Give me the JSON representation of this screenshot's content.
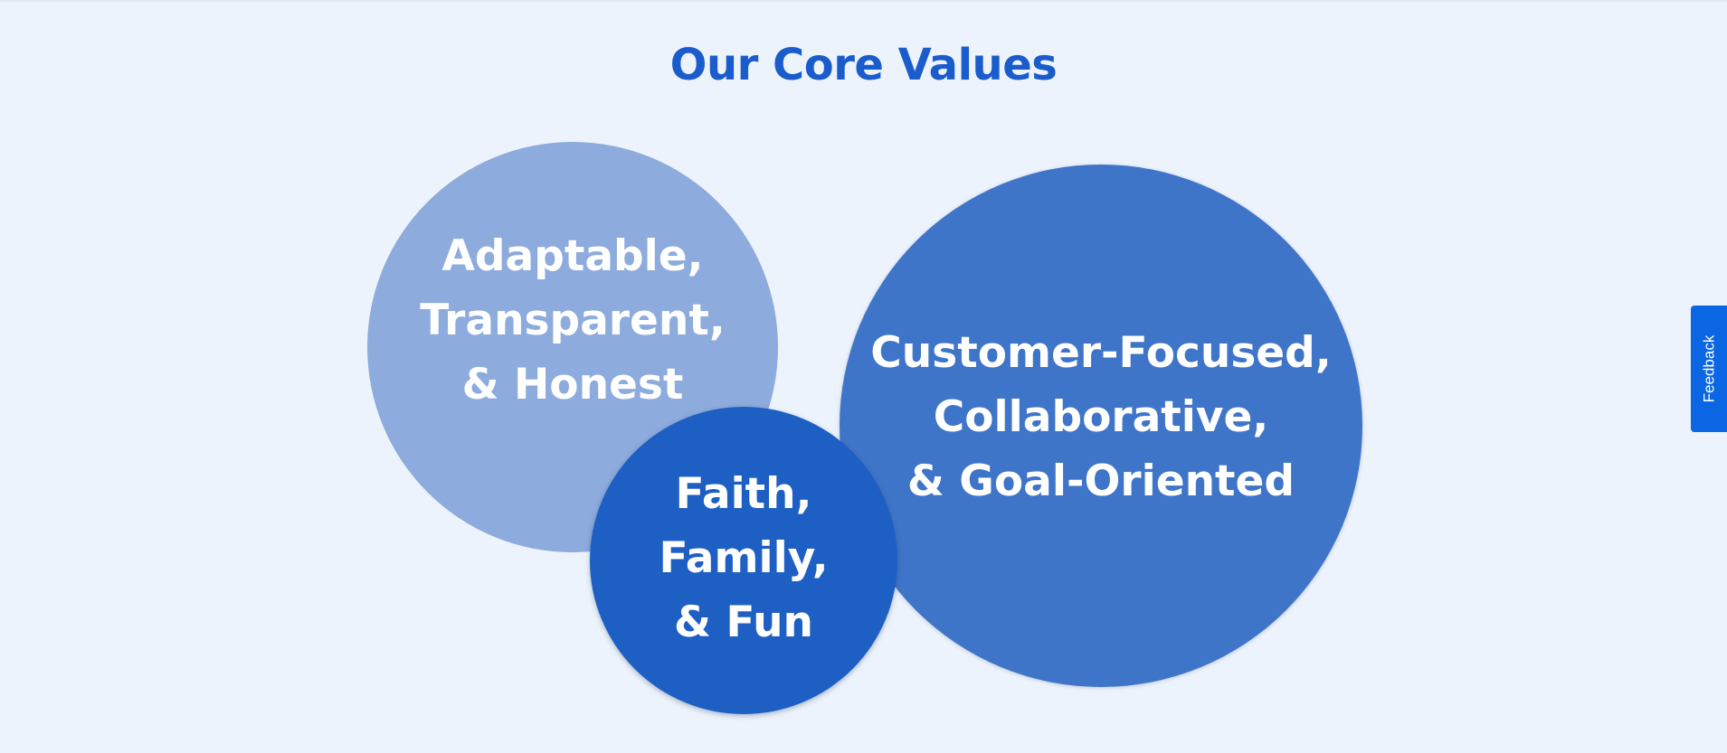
{
  "page": {
    "title": "Our Core Values"
  },
  "values": [
    {
      "lines": [
        "Adaptable,",
        "Transparent,",
        "& Honest"
      ],
      "color": "#8dabdd"
    },
    {
      "lines": [
        "Customer-Focused,",
        "Collaborative,",
        "& Goal-Oriented"
      ],
      "color": "#3f75c8"
    },
    {
      "lines": [
        "Faith,",
        "Family,",
        "& Fun"
      ],
      "color": "#1e5fc4"
    }
  ],
  "feedback": {
    "label": "Feedback"
  },
  "theme": {
    "background": "#edf3fc",
    "title_color": "#1a5ccc",
    "feedback_color": "#0b66e4"
  }
}
